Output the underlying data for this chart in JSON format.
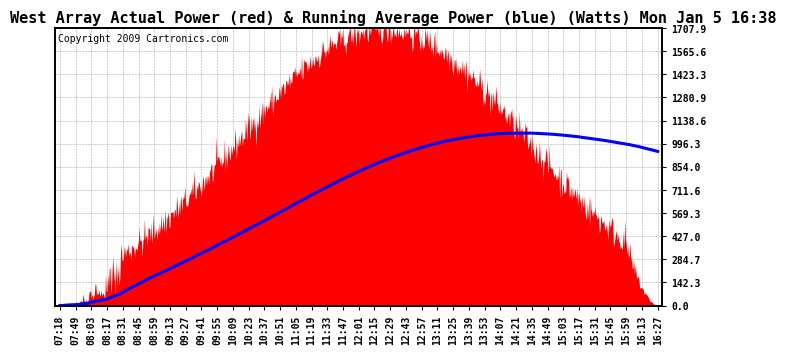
{
  "title": "West Array Actual Power (red) & Running Average Power (blue) (Watts) Mon Jan 5 16:38",
  "copyright": "Copyright 2009 Cartronics.com",
  "background_color": "#ffffff",
  "plot_bg_color": "#ffffff",
  "grid_color": "#aaaaaa",
  "yticks": [
    0.0,
    142.3,
    284.7,
    427.0,
    569.3,
    711.6,
    854.0,
    996.3,
    1138.6,
    1280.9,
    1423.3,
    1565.6,
    1707.9
  ],
  "ylim": [
    0.0,
    1707.9
  ],
  "x_labels": [
    "07:18",
    "07:49",
    "08:03",
    "08:17",
    "08:31",
    "08:45",
    "08:59",
    "09:13",
    "09:27",
    "09:41",
    "09:55",
    "10:09",
    "10:23",
    "10:37",
    "10:51",
    "11:05",
    "11:19",
    "11:33",
    "11:47",
    "12:01",
    "12:15",
    "12:29",
    "12:43",
    "12:57",
    "13:11",
    "13:25",
    "13:39",
    "13:53",
    "14:07",
    "14:21",
    "14:35",
    "14:49",
    "15:03",
    "15:17",
    "15:31",
    "15:45",
    "15:59",
    "16:13",
    "16:27"
  ],
  "actual_color": "#ff0000",
  "avg_color": "#0000ff",
  "title_fontsize": 11,
  "copyright_fontsize": 7,
  "tick_fontsize": 7,
  "n_points": 800,
  "peak": 1707.9,
  "noon_hour": 12.25,
  "sigma": 130,
  "noise_seed": 42
}
